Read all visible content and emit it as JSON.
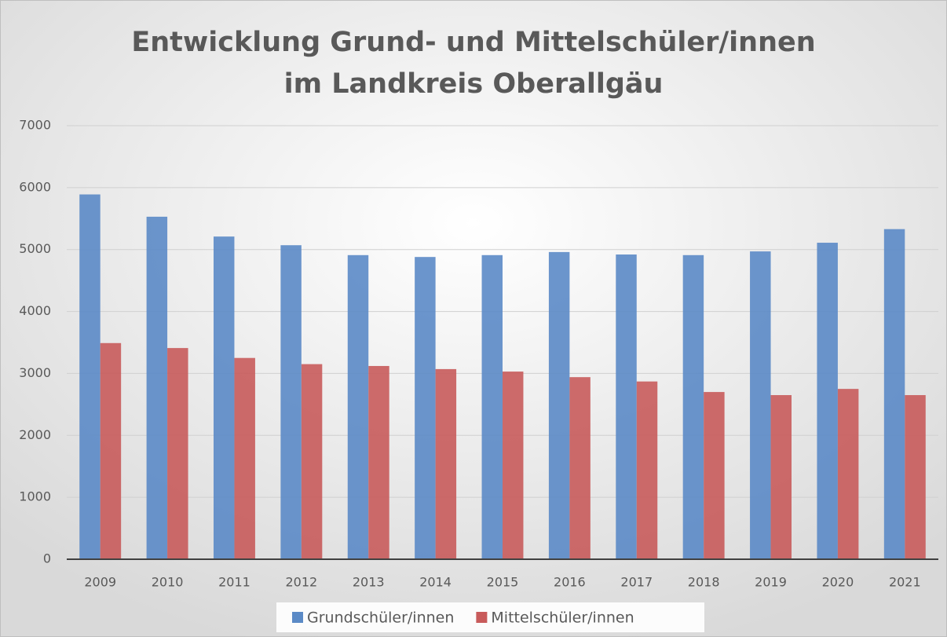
{
  "chart_data": {
    "type": "bar",
    "title": [
      "Entwicklung Grund- und Mittelschüler/innen",
      "im Landkreis Oberallgäu"
    ],
    "categories": [
      "2009",
      "2010",
      "2011",
      "2012",
      "2013",
      "2014",
      "2015",
      "2016",
      "2017",
      "2018",
      "2019",
      "2020",
      "2021"
    ],
    "series": [
      {
        "name": "Grundschüler/innen",
        "color": "#5b8ac6",
        "values": [
          5890,
          5530,
          5210,
          5070,
          4910,
          4880,
          4910,
          4960,
          4920,
          4910,
          4970,
          5110,
          5330
        ]
      },
      {
        "name": "Mittelschüler/innen",
        "color": "#c85b5b",
        "values": [
          3490,
          3410,
          3250,
          3150,
          3120,
          3070,
          3030,
          2940,
          2870,
          2700,
          2650,
          2750,
          2650
        ]
      }
    ],
    "ylim": [
      0,
      7000
    ],
    "yticks": [
      0,
      1000,
      2000,
      3000,
      4000,
      5000,
      6000,
      7000
    ],
    "grid": true,
    "legend": "bottom"
  }
}
